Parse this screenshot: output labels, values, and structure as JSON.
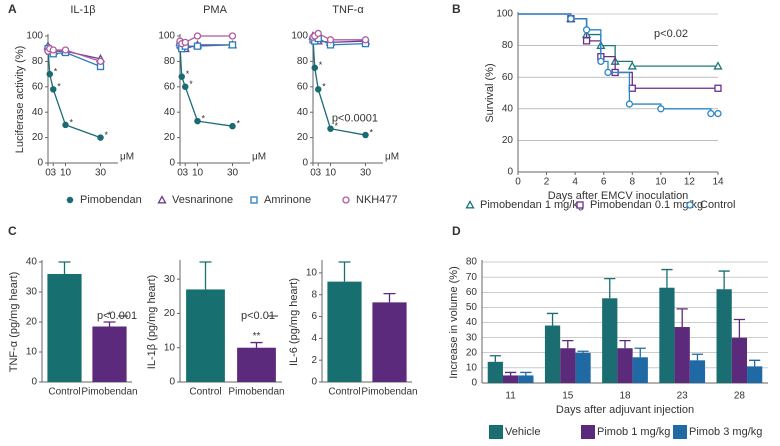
{
  "panels": [
    "A",
    "B",
    "C",
    "D"
  ],
  "chart_data": [
    {
      "type": "line",
      "title": "IL-1β",
      "ylabel": "Luciferase activity (%)",
      "x_unit": "μM",
      "legend": "bottom",
      "x": [
        0,
        1,
        3,
        10,
        30
      ],
      "xlim": [
        0,
        40
      ],
      "xticks": [
        0,
        3,
        10,
        30
      ],
      "ylim": [
        0,
        100
      ],
      "yticks": [
        0,
        20,
        40,
        60,
        80,
        100
      ],
      "series": [
        {
          "name": "Pimobendan",
          "color": "#1a6b73",
          "marker": "circle-filled",
          "values": [
            90,
            70,
            58,
            30,
            20
          ],
          "markers": [
            null,
            "*",
            "*",
            "*",
            "*"
          ]
        },
        {
          "name": "Vesnarinone",
          "color": "#6a3d8f",
          "marker": "triangle",
          "values": [
            92,
            90,
            88,
            88,
            82
          ]
        },
        {
          "name": "Amrinone",
          "color": "#2a7bbf",
          "marker": "square",
          "values": [
            90,
            88,
            86,
            87,
            76
          ]
        },
        {
          "name": "NKH477",
          "color": "#b05aa0",
          "marker": "circle",
          "values": [
            88,
            90,
            89,
            89,
            80
          ]
        }
      ]
    },
    {
      "type": "line",
      "title": "PMA",
      "x_unit": "μM",
      "x": [
        0,
        1,
        3,
        10,
        30
      ],
      "xlim": [
        0,
        40
      ],
      "xticks": [
        0,
        3,
        10,
        30
      ],
      "ylim": [
        0,
        100
      ],
      "yticks": [
        0,
        20,
        40,
        60,
        80,
        100
      ],
      "series": [
        {
          "name": "Pimobendan",
          "color": "#1a6b73",
          "marker": "circle-filled",
          "values": [
            92,
            68,
            60,
            33,
            29
          ],
          "markers": [
            null,
            "*",
            "*",
            "*",
            "*"
          ]
        },
        {
          "name": "Vesnarinone",
          "color": "#6a3d8f",
          "marker": "triangle",
          "values": [
            95,
            92,
            90,
            93,
            93
          ]
        },
        {
          "name": "Amrinone",
          "color": "#2a7bbf",
          "marker": "square",
          "values": [
            93,
            90,
            92,
            92,
            93
          ]
        },
        {
          "name": "NKH477",
          "color": "#b05aa0",
          "marker": "circle",
          "values": [
            96,
            94,
            95,
            100,
            100
          ]
        }
      ]
    },
    {
      "type": "line",
      "title": "TNF-α",
      "x_unit": "μM",
      "annotation": "p<0.0001",
      "x": [
        0,
        1,
        3,
        10,
        30
      ],
      "xlim": [
        0,
        40
      ],
      "xticks": [
        0,
        3,
        10,
        30
      ],
      "ylim": [
        0,
        100
      ],
      "yticks": [
        0,
        20,
        40,
        60,
        80,
        100
      ],
      "series": [
        {
          "name": "Pimobendan",
          "color": "#1a6b73",
          "marker": "circle-filled",
          "values": [
            98,
            75,
            58,
            27,
            22
          ],
          "markers": [
            null,
            "*",
            "*",
            "*",
            "*"
          ]
        },
        {
          "name": "Vesnarinone",
          "color": "#6a3d8f",
          "marker": "triangle",
          "values": [
            100,
            98,
            96,
            95,
            96
          ]
        },
        {
          "name": "Amrinone",
          "color": "#2a7bbf",
          "marker": "square",
          "values": [
            97,
            96,
            98,
            93,
            94
          ]
        },
        {
          "name": "NKH477",
          "color": "#b05aa0",
          "marker": "circle",
          "values": [
            99,
            100,
            102,
            97,
            97
          ]
        }
      ]
    },
    {
      "type": "line",
      "step": true,
      "grid": true,
      "legend": "bottom",
      "annotation": "p<0.02",
      "xlabel": "Days after EMCV inoculation",
      "ylabel": "Survival (%)",
      "xlim": [
        0,
        14
      ],
      "xticks": [
        0,
        2,
        4,
        6,
        8,
        10,
        12,
        14
      ],
      "ylim": [
        0,
        100
      ],
      "yticks": [
        0,
        20,
        40,
        60,
        80,
        100
      ],
      "series": [
        {
          "name": "Pimobendan 1 mg/kg",
          "color": "#1a7a78",
          "marker": "triangle",
          "x": [
            0,
            3.7,
            4.8,
            5.8,
            6.8,
            8,
            14
          ],
          "values": [
            100,
            97,
            87,
            80,
            70,
            67,
            67
          ]
        },
        {
          "name": "Pimobendan 0.1 mg/kg",
          "color": "#6a2d8f",
          "marker": "square",
          "x": [
            0,
            3.7,
            4.8,
            5.8,
            6.8,
            8,
            14
          ],
          "values": [
            100,
            97,
            83,
            73,
            63,
            53,
            53
          ]
        },
        {
          "name": "Control",
          "color": "#2a86c6",
          "marker": "circle",
          "x": [
            0,
            3.7,
            4.8,
            5.8,
            6.3,
            7.8,
            10,
            13.5,
            14
          ],
          "values": [
            100,
            97,
            90,
            70,
            63,
            43,
            40,
            37,
            37
          ]
        }
      ]
    },
    {
      "type": "bar",
      "ylabel": "TNF-α (pg/mg heart)",
      "annotation": "p<0.001",
      "significance": "*",
      "categories": [
        "Control",
        "Pimobendan"
      ],
      "values": [
        36,
        18.5
      ],
      "errors": [
        4,
        1.5
      ],
      "colors": [
        "#17706f",
        "#5c2a7d"
      ],
      "ylim": [
        0,
        40
      ],
      "yticks": [
        0,
        10,
        20,
        30,
        40
      ]
    },
    {
      "type": "bar",
      "ylabel": "IL-1β (pg/mg heart)",
      "annotation": "p<0.01",
      "significance": "**",
      "categories": [
        "Control",
        "Pimobendan"
      ],
      "values": [
        27,
        10
      ],
      "errors": [
        8,
        1.5
      ],
      "colors": [
        "#17706f",
        "#5c2a7d"
      ],
      "ylim": [
        0,
        35
      ],
      "yticks": [
        0,
        10,
        20,
        30
      ]
    },
    {
      "type": "bar",
      "ylabel": "IL-6 (pg/mg heart)",
      "categories": [
        "Control",
        "Pimobendan"
      ],
      "values": [
        9.2,
        7.3
      ],
      "errors": [
        1.8,
        0.8
      ],
      "colors": [
        "#17706f",
        "#5c2a7d"
      ],
      "ylim": [
        0,
        11
      ],
      "yticks": [
        0,
        2,
        4,
        6,
        8,
        10
      ]
    },
    {
      "type": "grouped-bar",
      "grid": true,
      "legend": "bottom",
      "xlabel": "Days after adjuvant injection",
      "ylabel": "Increase in volume (%)",
      "categories": [
        "11",
        "15",
        "18",
        "23",
        "28"
      ],
      "ylim": [
        0,
        80
      ],
      "yticks": [
        0,
        10,
        20,
        30,
        40,
        50,
        60,
        70,
        80
      ],
      "series": [
        {
          "name": "Vehicle",
          "color": "#1a6e72",
          "values": [
            14,
            38,
            56,
            63,
            62
          ],
          "errors": [
            4,
            8,
            13,
            12,
            12
          ]
        },
        {
          "name": "Pimob 1 mg/kg",
          "color": "#5b2a7a",
          "values": [
            5,
            23,
            23,
            37,
            30
          ],
          "errors": [
            2,
            5,
            5,
            12,
            12
          ]
        },
        {
          "name": "Pimob 3 mg/kg",
          "color": "#1f6aa5",
          "values": [
            5,
            20,
            17,
            15,
            11
          ],
          "errors": [
            2,
            1,
            6,
            4,
            4
          ]
        }
      ]
    }
  ]
}
